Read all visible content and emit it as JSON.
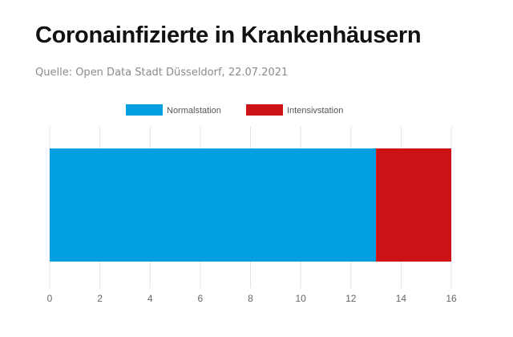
{
  "header": {
    "title": "Coronainfizierte in Krankenhäusern",
    "source": "Quelle: Open Data Stadt Düsseldorf, 22.07.2021"
  },
  "chart_data": {
    "type": "bar",
    "orientation": "horizontal",
    "stacked": true,
    "title": "Coronainfizierte in Krankenhäusern",
    "subtitle": "Quelle: Open Data Stadt Düsseldorf, 22.07.2021",
    "categories": [
      ""
    ],
    "series": [
      {
        "name": "Normalstation",
        "values": [
          13
        ],
        "color": "#00a0e0"
      },
      {
        "name": "Intensivstation",
        "values": [
          3
        ],
        "color": "#cc1214"
      }
    ],
    "xlim": [
      0,
      16
    ],
    "xticks": [
      0,
      2,
      4,
      6,
      8,
      10,
      12,
      14,
      16
    ],
    "xlabel": "",
    "ylabel": "",
    "grid": "vertical",
    "legend": "top-center"
  }
}
